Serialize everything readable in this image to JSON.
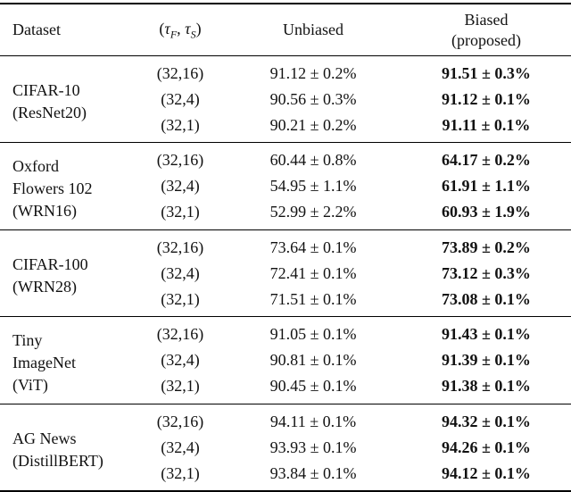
{
  "table": {
    "headers": {
      "dataset": "Dataset",
      "tau_parts": {
        "open": "(",
        "tau1": "τ",
        "sub1": "F",
        "sep": ", ",
        "tau2": "τ",
        "sub2": "S",
        "close": ")"
      },
      "unbiased": "Unbiased",
      "biased_line1": "Biased",
      "biased_line2": "(proposed)"
    },
    "groups": [
      {
        "dataset_lines": [
          "CIFAR-10",
          "(ResNet20)"
        ],
        "rows": [
          {
            "tau": "(32,16)",
            "unbiased": "91.12 ± 0.2%",
            "biased": "91.51 ± 0.3%"
          },
          {
            "tau": "(32,4)",
            "unbiased": "90.56 ± 0.3%",
            "biased": "91.12 ± 0.1%"
          },
          {
            "tau": "(32,1)",
            "unbiased": "90.21 ± 0.2%",
            "biased": "91.11 ± 0.1%"
          }
        ]
      },
      {
        "dataset_lines": [
          "Oxford",
          "Flowers 102",
          "(WRN16)"
        ],
        "rows": [
          {
            "tau": "(32,16)",
            "unbiased": "60.44 ± 0.8%",
            "biased": "64.17 ± 0.2%"
          },
          {
            "tau": "(32,4)",
            "unbiased": "54.95 ± 1.1%",
            "biased": "61.91 ± 1.1%"
          },
          {
            "tau": "(32,1)",
            "unbiased": "52.99 ± 2.2%",
            "biased": "60.93 ± 1.9%"
          }
        ]
      },
      {
        "dataset_lines": [
          "CIFAR-100",
          "(WRN28)"
        ],
        "rows": [
          {
            "tau": "(32,16)",
            "unbiased": "73.64 ± 0.1%",
            "biased": "73.89 ± 0.2%"
          },
          {
            "tau": "(32,4)",
            "unbiased": "72.41 ± 0.1%",
            "biased": "73.12 ± 0.3%"
          },
          {
            "tau": "(32,1)",
            "unbiased": "71.51 ± 0.1%",
            "biased": "73.08 ± 0.1%"
          }
        ]
      },
      {
        "dataset_lines": [
          "Tiny",
          "ImageNet",
          "(ViT)"
        ],
        "rows": [
          {
            "tau": "(32,16)",
            "unbiased": "91.05 ± 0.1%",
            "biased": "91.43 ± 0.1%"
          },
          {
            "tau": "(32,4)",
            "unbiased": "90.81 ± 0.1%",
            "biased": "91.39 ± 0.1%"
          },
          {
            "tau": "(32,1)",
            "unbiased": "90.45 ± 0.1%",
            "biased": "91.38 ± 0.1%"
          }
        ]
      },
      {
        "dataset_lines": [
          "AG News",
          "(DistillBERT)"
        ],
        "rows": [
          {
            "tau": "(32,16)",
            "unbiased": "94.11 ± 0.1%",
            "biased": "94.32 ± 0.1%"
          },
          {
            "tau": "(32,4)",
            "unbiased": "93.93 ± 0.1%",
            "biased": "94.26 ± 0.1%"
          },
          {
            "tau": "(32,1)",
            "unbiased": "93.84 ± 0.1%",
            "biased": "94.12 ± 0.1%"
          }
        ]
      }
    ]
  }
}
